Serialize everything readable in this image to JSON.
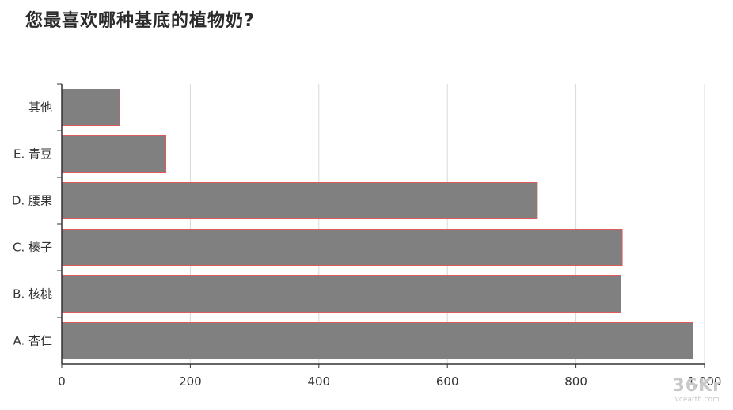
{
  "chart_data": {
    "type": "bar",
    "orientation": "horizontal",
    "title": "您最喜欢哪种基底的植物奶?",
    "categories": [
      "A. 杏仁",
      "B. 核桃",
      "C. 榛子",
      "D. 腰果",
      "E. 青豆",
      "其他"
    ],
    "values": [
      982,
      870,
      872,
      740,
      162,
      90
    ],
    "xlim": [
      0,
      1000
    ],
    "xticks": [
      "0",
      "200",
      "400",
      "600",
      "800",
      "1,000"
    ],
    "grid": true,
    "bar_color": "#808080",
    "bar_edge_color": "#e05a5a",
    "grid_color": "#d9d9d9",
    "axis_color": "#333333"
  },
  "watermark": {
    "logo": "36Kr",
    "site": "vcearth.com"
  }
}
